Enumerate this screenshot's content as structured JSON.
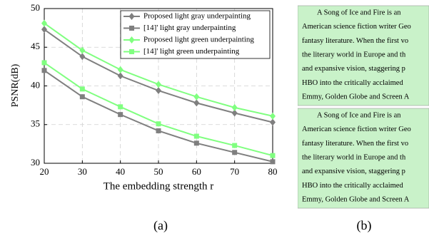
{
  "chart_data": {
    "type": "line",
    "ylabel": "PSNR(dB)",
    "xlabel": "The embedding strength r",
    "x": [
      20,
      30,
      40,
      50,
      60,
      70,
      80
    ],
    "xlim": [
      20,
      80
    ],
    "xticks": [
      20,
      30,
      40,
      50,
      60,
      70,
      80
    ],
    "ylim": [
      30,
      50
    ],
    "yticks": [
      30,
      35,
      40,
      45,
      50
    ],
    "grid": true,
    "legend": "upper right",
    "series": [
      {
        "name": "Proposed light gray underpainting",
        "color": "#7f7f7f",
        "marker": "diamond",
        "values": [
          47.3,
          43.8,
          41.3,
          39.4,
          37.8,
          36.5,
          35.3
        ]
      },
      {
        "name": "[14]' light gray underpainting",
        "color": "#7f7f7f",
        "marker": "square",
        "values": [
          42.0,
          38.6,
          36.3,
          34.2,
          32.6,
          31.4,
          30.2
        ]
      },
      {
        "name": "Proposed light green underpainting",
        "color": "#80ff80",
        "marker": "diamond",
        "values": [
          48.1,
          44.6,
          42.1,
          40.2,
          38.6,
          37.2,
          36.1
        ]
      },
      {
        "name": "[14]' light green underpainting",
        "color": "#80ff80",
        "marker": "square",
        "values": [
          43.0,
          39.6,
          37.3,
          35.1,
          33.5,
          32.3,
          31.0
        ]
      }
    ]
  },
  "panel_b": {
    "blocks": [
      {
        "lines": [
          "A Song of Ice and Fire is an",
          "American science fiction writer Geo",
          "fantasy literature. When the first vo",
          "the literary world in Europe and th",
          "and expansive vision, staggering p",
          "HBO into the critically acclaimed",
          "Emmy, Golden Globe and Screen A"
        ]
      },
      {
        "lines": [
          "A Song of Ice and Fire is an",
          "American science fiction writer Geo",
          "fantasy literature. When the first vo",
          "the literary world in Europe and th",
          "and expansive vision, staggering p",
          "HBO into the critically acclaimed",
          "Emmy, Golden Globe and Screen A"
        ]
      }
    ]
  },
  "captions": [
    "(a)",
    "(b)"
  ]
}
